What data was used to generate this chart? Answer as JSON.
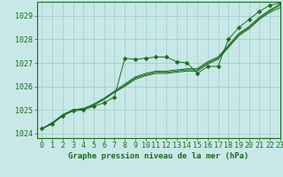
{
  "title": "Graphe pression niveau de la mer (hPa)",
  "bg_color": "#c8e8e8",
  "grid_color": "#9fc8c8",
  "line_color": "#1a6b1a",
  "xlim": [
    -0.5,
    23
  ],
  "ylim": [
    1023.8,
    1029.6
  ],
  "yticks": [
    1024,
    1025,
    1026,
    1027,
    1028,
    1029
  ],
  "xticks": [
    0,
    1,
    2,
    3,
    4,
    5,
    6,
    7,
    8,
    9,
    10,
    11,
    12,
    13,
    14,
    15,
    16,
    17,
    18,
    19,
    20,
    21,
    22,
    23
  ],
  "series_smooth": [
    [
      1024.2,
      1024.45,
      1024.75,
      1025.0,
      1025.05,
      1025.2,
      1025.45,
      1025.75,
      1026.0,
      1026.3,
      1026.45,
      1026.55,
      1026.55,
      1026.6,
      1026.65,
      1026.65,
      1026.95,
      1027.15,
      1027.65,
      1028.15,
      1028.45,
      1028.85,
      1029.15,
      1029.35
    ],
    [
      1024.2,
      1024.45,
      1024.75,
      1025.0,
      1025.05,
      1025.2,
      1025.45,
      1025.75,
      1026.05,
      1026.35,
      1026.5,
      1026.6,
      1026.6,
      1026.65,
      1026.7,
      1026.7,
      1027.0,
      1027.2,
      1027.7,
      1028.2,
      1028.5,
      1028.9,
      1029.2,
      1029.45
    ],
    [
      1024.2,
      1024.45,
      1024.8,
      1025.0,
      1025.05,
      1025.25,
      1025.5,
      1025.8,
      1026.1,
      1026.4,
      1026.55,
      1026.65,
      1026.65,
      1026.7,
      1026.75,
      1026.75,
      1027.05,
      1027.25,
      1027.75,
      1028.25,
      1028.55,
      1028.95,
      1029.25,
      1029.5
    ]
  ],
  "series_marker": [
    1024.2,
    1024.4,
    1024.75,
    1024.95,
    1025.0,
    1025.15,
    1025.3,
    1025.55,
    1027.2,
    1027.15,
    1027.2,
    1027.25,
    1027.25,
    1027.05,
    1027.0,
    1026.55,
    1026.85,
    1026.85,
    1028.0,
    1028.5,
    1028.85,
    1029.2,
    1029.45,
    1029.55
  ],
  "marker": "D",
  "marker_size": 2.5,
  "font_size": 6,
  "title_font_size": 6.5,
  "lw_smooth": 0.7,
  "lw_marker": 0.7
}
